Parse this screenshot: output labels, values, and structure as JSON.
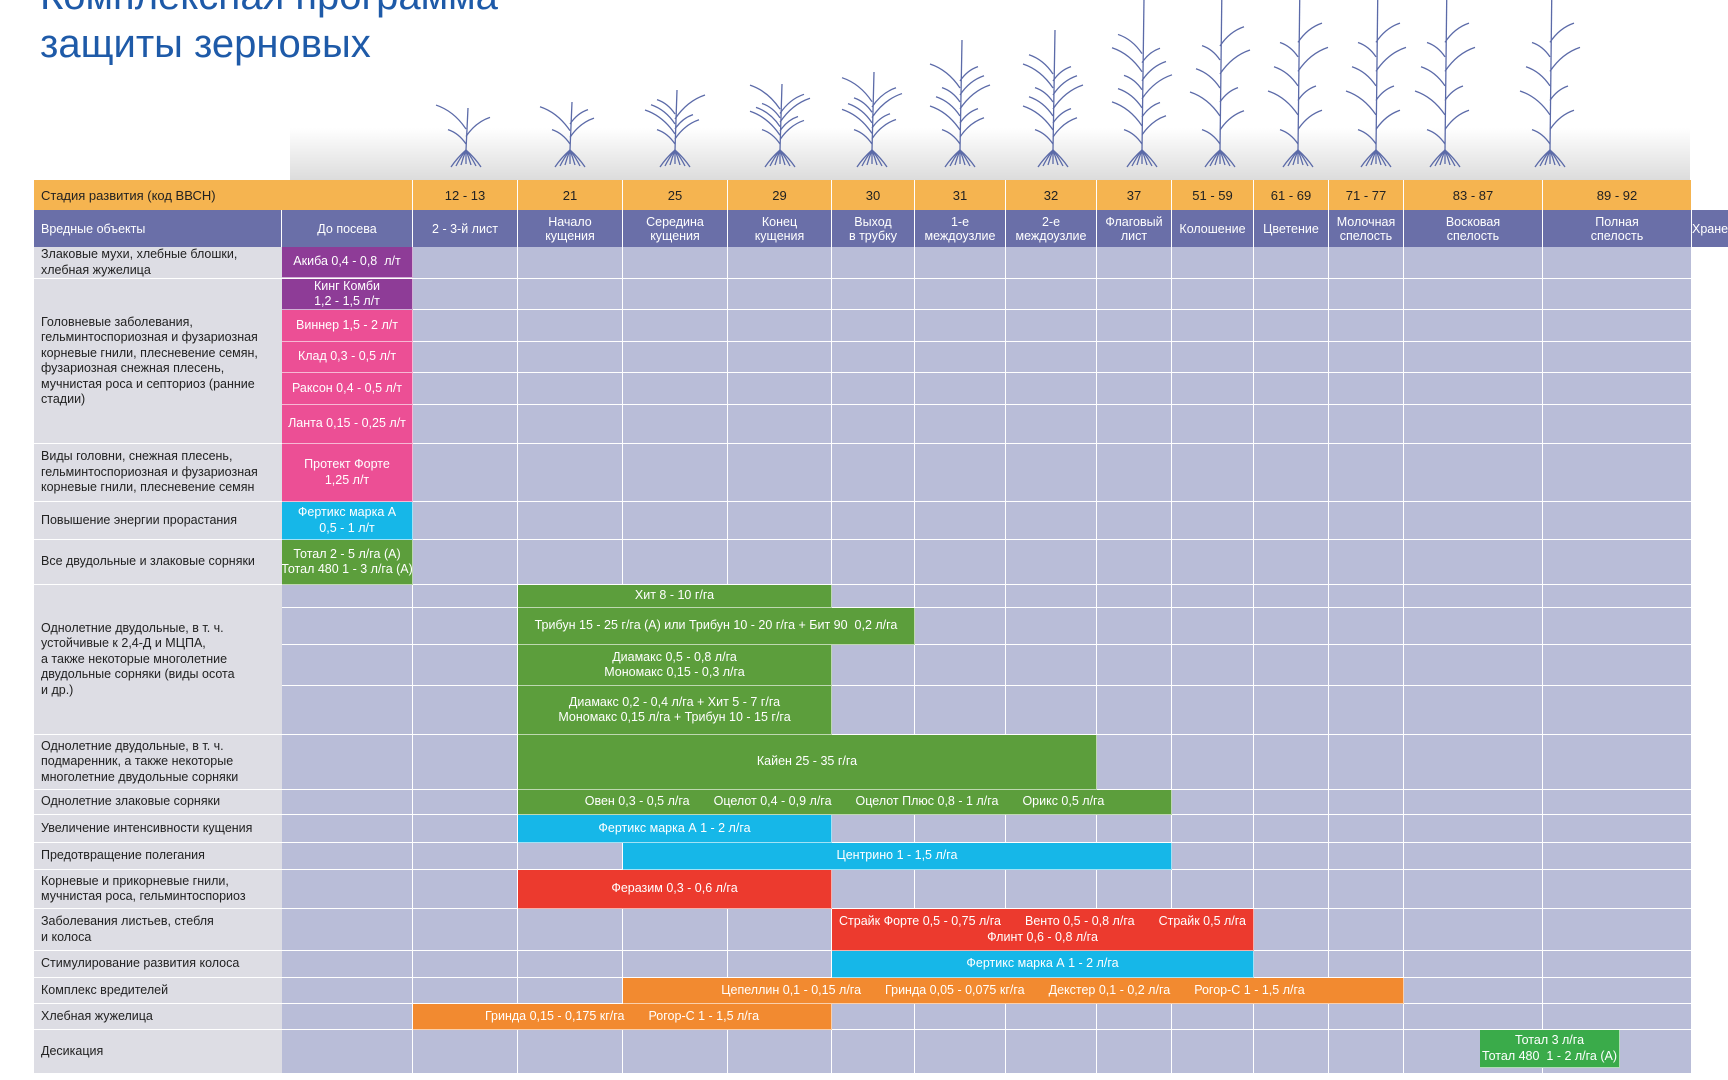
{
  "title": {
    "line1": "Комплексная программа",
    "line2": "защиты зерновых"
  },
  "colors": {
    "orange_header": "#f5b450",
    "purple_header": "#6a6fa8",
    "grid": "#b9bdd8",
    "label_bg": "#dddde4",
    "title": "#1e5aa8"
  },
  "header": {
    "stage_label": "Стадия развития (код ВВСН)",
    "pests_label": "Вредные объекты",
    "codes": [
      "",
      "12 - 13",
      "21",
      "25",
      "29",
      "30",
      "31",
      "32",
      "37",
      "51 - 59",
      "61 - 69",
      "71 - 77",
      "83 - 87",
      "89 - 92",
      ""
    ],
    "phases": [
      "До посева",
      "2 - 3-й лист",
      "Начало\nкущения",
      "Середина\nкущения",
      "Конец\nкущения",
      "Выход\nв трубку",
      "1-е\nмеждоузлие",
      "2-е\nмеждоузлие",
      "Флаговый\nлист",
      "Колошение",
      "Цветение",
      "Молочная\nспелость",
      "Восковая\nспелость",
      "Полная\nспелость",
      "Хранение"
    ]
  },
  "labels": [
    "Злаковые мухи, хлебные блошки,\nхлебная жужелица",
    "Головневые заболевания,\nгельминтоспориозная и фузариозная\nкорневые гнили, плесневение семян,\nфузариозная снежная плесень,\nмучнистая роса и септориоз (ранние\nстадии)",
    "Виды головни, снежная плесень,\nгельминтоспориозная и фузариозная\nкорневые гнили, плесневение семян",
    "Повышение энергии прорастания",
    "Все двудольные и злаковые сорняки",
    "Однолетние двудольные, в т. ч.\nустойчивые к 2,4-Д и МЦПА,\nа также некоторые многолетние\nдвудольные сорняки (виды осота\nи др.)",
    "Однолетние двудольные, в т. ч.\nподмаренник, а также некоторые\nмноголетние двудольные сорняки",
    "Однолетние злаковые сорняки",
    "Увеличение интенсивности кущения",
    "Предотвращение полегания",
    "Корневые и прикорневые гнили,\nмучнистая роса, гельминтоспориоз",
    "Заболевания листьев, стебля\nи колоса",
    "Стимулирование развития колоса",
    "Комплекс вредителей",
    "Хлебная жужелица",
    "Десикация"
  ],
  "treatments": [
    {
      "text": "Акиба 0,4 - 0,8  л/т",
      "color": "#8e3c97"
    },
    {
      "text": "Кинг Комби\n1,2 - 1,5 л/т",
      "color": "#8e3c97"
    },
    {
      "text": "Виннер 1,5 - 2 л/т",
      "color": "#ec4f95"
    },
    {
      "text": "Клад 0,3 - 0,5 л/т",
      "color": "#ec4f95"
    },
    {
      "text": "Раксон 0,4 - 0,5 л/т",
      "color": "#ec4f95"
    },
    {
      "text": "Ланта 0,15 - 0,25 л/т",
      "color": "#ec4f95"
    },
    {
      "text": "Протект Форте\n1,25 л/т",
      "color": "#ec4f95"
    },
    {
      "text": "Фертикс марка А\n0,5 - 1 л/т",
      "color": "#16b7e8"
    },
    {
      "text": "Тотал 2 - 5 л/га (А)\nТотал 480 1 - 3 л/га (А)",
      "color": "#5c9e3c"
    },
    {
      "text": "Хит 8 - 10 г/га",
      "color": "#5c9e3c"
    },
    {
      "text": "Трибун 15 - 25 г/га (А) или Трибун 10 - 20 г/га + Бит 90  0,2 л/га",
      "color": "#5c9e3c"
    },
    {
      "text": "Диамакс 0,5 - 0,8 л/га\nМономакс 0,15 - 0,3 л/га",
      "color": "#5c9e3c"
    },
    {
      "text": "Диамакс 0,2 - 0,4 л/га + Хит 5 - 7 г/га\nМономакс 0,15 л/га + Трибун 10 - 15 г/га",
      "color": "#5c9e3c"
    },
    {
      "text": "Кайен 25 - 35 г/га",
      "color": "#5c9e3c"
    },
    {
      "parts": [
        "Овен 0,3 - 0,5 л/га",
        "Оцелот 0,4 - 0,9 л/га",
        "Оцелот Плюс 0,8 - 1 л/га",
        "Орикс 0,5 л/га"
      ],
      "color": "#5c9e3c"
    },
    {
      "text": "Фертикс марка А 1 - 2 л/га",
      "color": "#16b7e8"
    },
    {
      "text": "Центрино 1 - 1,5 л/га",
      "color": "#16b7e8"
    },
    {
      "text": "Феразим 0,3 - 0,6 л/га",
      "color": "#ec3a2e"
    },
    {
      "parts": [
        "Страйк Форте 0,5 - 0,75 л/га",
        "Венто 0,5 - 0,8 л/га",
        "Страйк 0,5 л/га"
      ],
      "line2": "Флинт 0,6 - 0,8 л/га",
      "color": "#ec3a2e"
    },
    {
      "text": "Фертикс марка А 1 - 2 л/га",
      "color": "#16b7e8"
    },
    {
      "parts": [
        "Цепеллин 0,1 - 0,15 л/га",
        "Гринда 0,05 - 0,075 кг/га",
        "Декстер 0,1 - 0,2 л/га",
        "Рогор-С 1 - 1,5 л/га"
      ],
      "color": "#f28a30"
    },
    {
      "parts": [
        "Гринда 0,15 - 0,175 кг/га",
        "Рогор-С 1 - 1,5 л/га"
      ],
      "color": "#f28a30"
    },
    {
      "text": "Тотал 3 л/га\nТотал 480  1 - 2 л/га (А)",
      "color": "#3aab4a"
    }
  ]
}
